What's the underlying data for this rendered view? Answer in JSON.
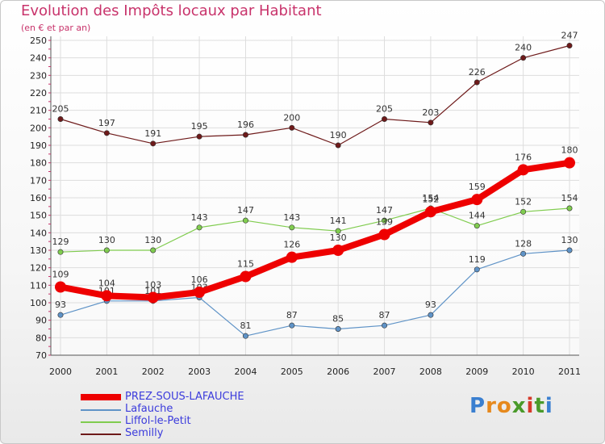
{
  "header": {
    "title": "Evolution des Impôts locaux par Habitant",
    "subtitle": "(en € et par an)"
  },
  "logo": {
    "text": "Proxiti"
  },
  "chart_data": {
    "type": "line",
    "title": "Evolution des Impôts locaux par Habitant",
    "subtitle": "(en € et par an)",
    "xlabel": "",
    "ylabel": "",
    "x": [
      "2000",
      "2001",
      "2002",
      "2003",
      "2004",
      "2005",
      "2006",
      "2007",
      "2008",
      "2009",
      "2010",
      "2011"
    ],
    "ylim": [
      70,
      250
    ],
    "yticks": [
      70,
      80,
      90,
      100,
      110,
      120,
      130,
      140,
      150,
      160,
      170,
      180,
      190,
      200,
      210,
      220,
      230,
      240,
      250
    ],
    "grid": true,
    "legend_position": "bottom-left",
    "series": [
      {
        "name": "Semilly",
        "color": "#6e1a1a",
        "values": [
          205,
          197,
          191,
          195,
          196,
          200,
          190,
          205,
          203,
          226,
          240,
          247
        ]
      },
      {
        "name": "Liffol-le-Petit",
        "color": "#80cc4f",
        "values": [
          129,
          130,
          130,
          143,
          147,
          143,
          141,
          147,
          154,
          144,
          152,
          154
        ]
      },
      {
        "name": "Lafauche",
        "color": "#5f93c7",
        "values": [
          93,
          101,
          101,
          103,
          81,
          87,
          85,
          87,
          93,
          119,
          128,
          130
        ]
      },
      {
        "name": "PREZ-SOUS-LAFAUCHE",
        "color": "#ee0000",
        "values": [
          109,
          104,
          103,
          106,
          115,
          126,
          130,
          139,
          152,
          159,
          176,
          180
        ]
      }
    ],
    "legend": [
      "PREZ-SOUS-LAFAUCHE",
      "Lafauche",
      "Liffol-le-Petit",
      "Semilly"
    ]
  },
  "legend": [
    {
      "label": "PREZ-SOUS-LAFAUCHE",
      "color": "#ee0000",
      "text_color": "#3b3bdc"
    },
    {
      "label": "Lafauche",
      "color": "#5f93c7",
      "text_color": "#3b3bdc"
    },
    {
      "label": "Liffol-le-Petit",
      "color": "#80cc4f",
      "text_color": "#3b3bdc"
    },
    {
      "label": "Semilly",
      "color": "#6e1a1a",
      "text_color": "#3b3bdc"
    }
  ]
}
